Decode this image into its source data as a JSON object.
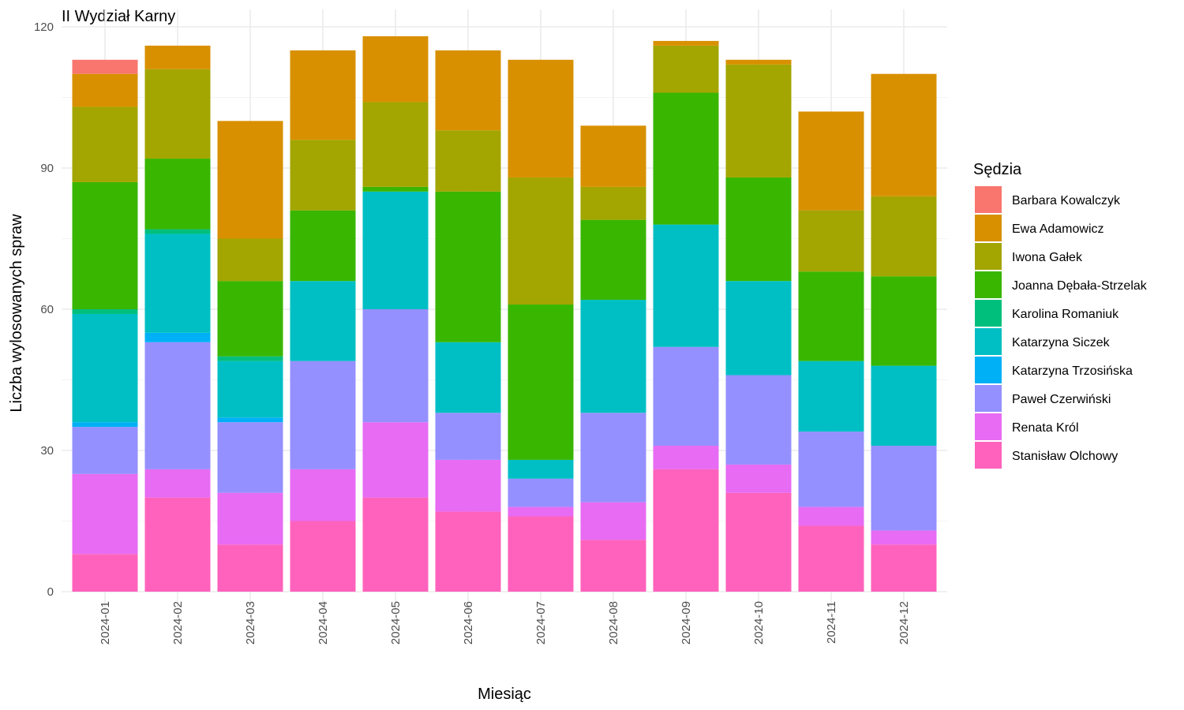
{
  "chart_data": {
    "type": "bar",
    "stacked": true,
    "title": "II Wydział Karny",
    "xlabel": "Miesiąc",
    "ylabel": "Liczba wylosowanych spraw",
    "ylim": [
      0,
      120
    ],
    "yticks": [
      0,
      30,
      60,
      90,
      120
    ],
    "categories": [
      "2024-01",
      "2024-02",
      "2024-03",
      "2024-04",
      "2024-05",
      "2024-06",
      "2024-07",
      "2024-08",
      "2024-09",
      "2024-10",
      "2024-11",
      "2024-12"
    ],
    "legend_title": "Sędzia",
    "legend_position": "right",
    "grid": true,
    "series": [
      {
        "name": "Barbara Kowalczyk",
        "color": "#F8766D",
        "values": [
          3,
          0,
          0,
          0,
          0,
          0,
          0,
          0,
          0,
          0,
          0,
          0
        ]
      },
      {
        "name": "Ewa Adamowicz",
        "color": "#D89000",
        "values": [
          7,
          5,
          25,
          19,
          14,
          17,
          25,
          13,
          1,
          1,
          21,
          26
        ]
      },
      {
        "name": "Iwona Gałek",
        "color": "#A3A500",
        "values": [
          16,
          19,
          9,
          15,
          18,
          13,
          27,
          7,
          10,
          24,
          13,
          17
        ]
      },
      {
        "name": "Joanna Dębała-Strzelak",
        "color": "#39B600",
        "values": [
          27,
          15,
          16,
          15,
          1,
          32,
          33,
          17,
          28,
          22,
          19,
          19
        ]
      },
      {
        "name": "Karolina Romaniuk",
        "color": "#00BF7D",
        "values": [
          1,
          1,
          1,
          0,
          0,
          0,
          0,
          0,
          0,
          0,
          0,
          0
        ]
      },
      {
        "name": "Katarzyna Siczek",
        "color": "#00BFC4",
        "values": [
          23,
          21,
          12,
          17,
          25,
          15,
          4,
          24,
          26,
          20,
          15,
          17
        ]
      },
      {
        "name": "Katarzyna Trzosińska",
        "color": "#00B0F6",
        "values": [
          1,
          2,
          1,
          0,
          0,
          0,
          0,
          0,
          0,
          0,
          0,
          0
        ]
      },
      {
        "name": "Paweł Czerwiński",
        "color": "#9590FF",
        "values": [
          10,
          27,
          15,
          23,
          24,
          10,
          6,
          19,
          21,
          19,
          16,
          18
        ]
      },
      {
        "name": "Renata Król",
        "color": "#E76BF3",
        "values": [
          17,
          6,
          11,
          11,
          16,
          11,
          2,
          8,
          5,
          6,
          4,
          3
        ]
      },
      {
        "name": "Stanisław Olchowy",
        "color": "#FF62BC",
        "values": [
          8,
          20,
          10,
          15,
          20,
          17,
          16,
          11,
          26,
          21,
          14,
          10
        ]
      }
    ]
  }
}
